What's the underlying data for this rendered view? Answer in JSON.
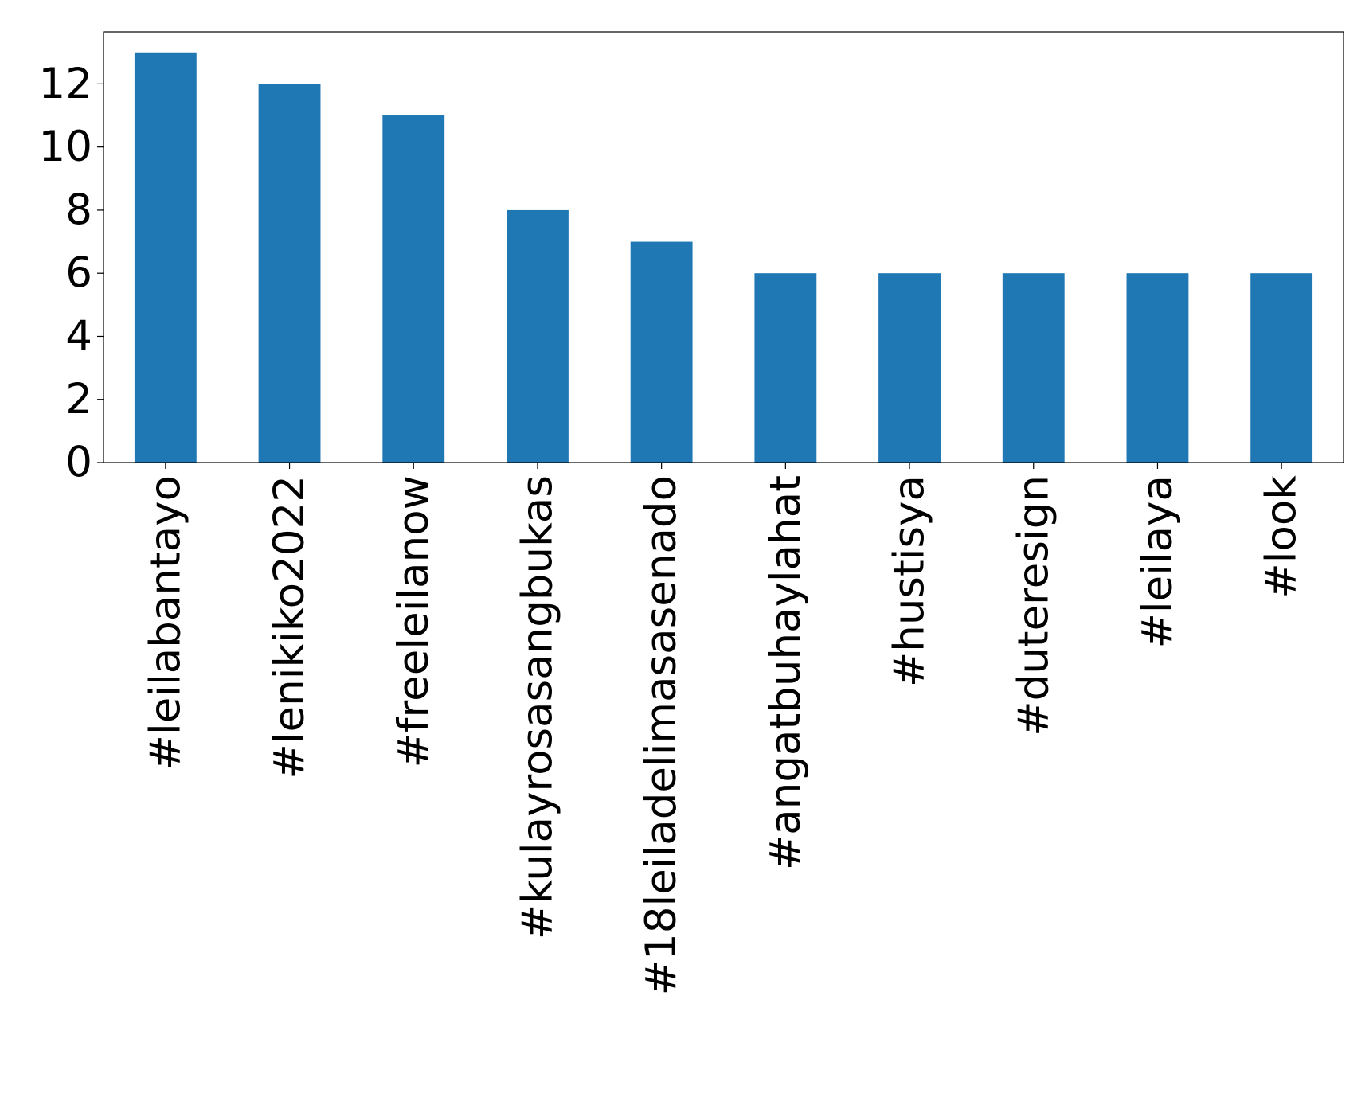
{
  "chart_data": {
    "type": "bar",
    "categories": [
      "#leilabantayo",
      "#lenikiko2022",
      "#freeleilanow",
      "#kulayrosasangbukas",
      "#18leiladelimasasenado",
      "#angatbuhaylahat",
      "#hustisya",
      "#duteresign",
      "#leilaya",
      "#look"
    ],
    "values": [
      13,
      12,
      11,
      8,
      7,
      6,
      6,
      6,
      6,
      6
    ],
    "color": "#1f77b4",
    "ylim": [
      0,
      13.65
    ],
    "yticks": [
      0,
      2,
      4,
      6,
      8,
      10,
      12
    ],
    "grid": false
  }
}
